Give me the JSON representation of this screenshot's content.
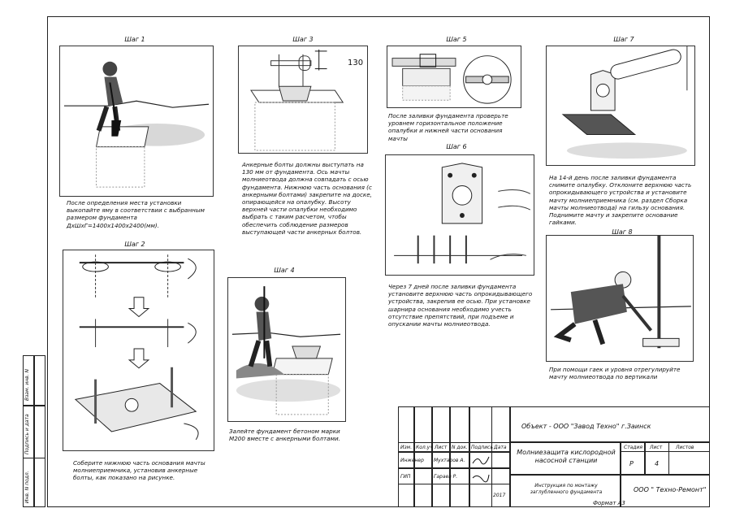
{
  "steps": {
    "s1": {
      "title": "Шаг 1",
      "caption": "После определения места установки выкопайте яму в соответствии с выбранным размером фундамента ДхШхГ=1400х1400х2400(мм)."
    },
    "s2": {
      "title": "Шаг 2",
      "caption": "Соберите нижнюю часть основания мачты молниеприемника, установив анкерные болты, как показано на рисунке."
    },
    "s3": {
      "title": "Шаг 3",
      "dimension": "130",
      "caption": "Анкерные болты должны выступать на 130 мм от фундамента. Ось мачты молниеотвода должна совпадать с осью фундамента. Нижнюю часть основания (с анкерными болтами) закрепите на доске, опирающейся на опалубку. Высоту верхней части опалубки необходимо выбрать с таким расчетом, чтобы обеспечить соблюдение размеров выступающей части анкерных болтов."
    },
    "s4": {
      "title": "Шаг 4",
      "caption": "Залейте фундамент бетоном марки М200 вместе с анкерными болтами."
    },
    "s5": {
      "title": "Шаг 5",
      "caption": "После заливки фундамента проверьте уровнем горизонтальное положение опалубки и нижней части основания мачты"
    },
    "s6": {
      "title": "Шаг 6",
      "caption": "Через 7 дней после заливки фундамента установите верхнюю часть опрокидывающего устройства, закрепив ее осью. При установке шарнира основания необходимо учесть отсутствие препятствий, при подъеме и опускании мачты молниеотвода."
    },
    "s7": {
      "title": "Шаг 7",
      "caption": "На 14-й день после заливки фундамента снимите опалубку. Отклоните верхнюю часть опрокидывающего устройства и установите мачту молниеприемника (см. раздел Сборка мачты молниеотвода) на гильзу основания. Поднимите мачту и закрепите основание гайками."
    },
    "s8": {
      "title": "Шаг 8",
      "caption": "При помощи гаек и уровня отрегулируйте мачту молниеотвода по вертикали"
    }
  },
  "sidebar": {
    "inv_sub": "Взам. инв. N",
    "sign_date": "Подпись и дата",
    "inv_orig": "Инв. N подл."
  },
  "title_block": {
    "object": "Объект - ООО \"Завод Техно\" г.Заинск",
    "project": "Молниезащита кислородной насосной станции",
    "doc": "Инструкция по монтажу заглубленного фундамента",
    "company": "ООО \" Техно-Ремонт\"",
    "h_izm": "Изм.",
    "h_kol": "Кол.уч",
    "h_list": "Лист",
    "h_ndok": "N док.",
    "h_podp": "Подпись",
    "h_data": "Дата",
    "r1_role": "Инженер",
    "r1_name": "Мухтаров А.",
    "r2_role": "ГИП",
    "r2_name": "Гараев Р.",
    "year": "2017",
    "stadiya_label": "Стадия",
    "list_label": "Лист",
    "listov_label": "Листов",
    "stadiya": "Р",
    "list": "4",
    "format": "Формат А3"
  }
}
